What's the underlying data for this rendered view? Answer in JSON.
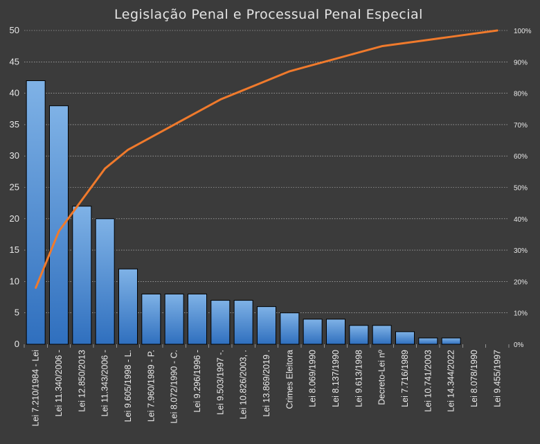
{
  "colors": {
    "background": "#3b3b3b",
    "bar_top": "#7fb2e6",
    "bar_bottom": "#2f6fbe",
    "bar_stroke": "#000000",
    "line": "#f07a2c",
    "grid": "#cfcfcf",
    "text": "#e8e8e8"
  },
  "chart_data": {
    "type": "bar",
    "title": "Legislação Penal e Processual Penal Especial",
    "xlabel": "",
    "ylabel": "",
    "ylim": [
      0,
      50
    ],
    "y2lim": [
      0,
      100
    ],
    "grid": true,
    "legend": "none",
    "yticks": [
      "0",
      "5",
      "10",
      "15",
      "20",
      "25",
      "30",
      "35",
      "40",
      "45",
      "50"
    ],
    "y2ticks": [
      "0%",
      "10%",
      "20%",
      "30%",
      "40%",
      "50%",
      "60%",
      "70%",
      "80%",
      "90%",
      "100%"
    ],
    "categories": [
      "Lei 7.210/1984 - Lei",
      "Lei 11.340/2006 -",
      "Lei 12.850/2013",
      "Lei 11.343/2006 -",
      "Lei 9.605/1998 - L.",
      "Lei 7.960/1989 - P.",
      "Lei 8.072/1990 - C.",
      "Lei 9.296/1996 -",
      "Lei 9.503/1997 -.",
      "Lei 10.826/2003, .",
      "Lei 13.869/2019 .",
      "Crimes Eleitora",
      "Lei 8.069/1990",
      "Lei 8.137/1990",
      "Lei 9.613/1998",
      "Decreto-Lei nº",
      "Lei 7.716/1989",
      "Lei 10.741/2003",
      "Lei 14.344/2022",
      "Lei 8.078/1990",
      "Lei 9.455/1997"
    ],
    "series": [
      {
        "type": "bar",
        "axis": "left",
        "values": [
          42,
          38,
          22,
          20,
          12,
          8,
          8,
          8,
          7,
          7,
          6,
          5,
          4,
          4,
          3,
          3,
          2,
          1,
          1,
          0,
          0
        ]
      },
      {
        "type": "line",
        "axis": "right",
        "values": [
          18,
          36,
          46,
          56,
          62,
          66,
          70,
          74,
          78,
          81,
          84,
          87,
          89,
          91,
          93,
          95,
          96,
          97,
          98,
          99,
          100
        ]
      }
    ]
  }
}
